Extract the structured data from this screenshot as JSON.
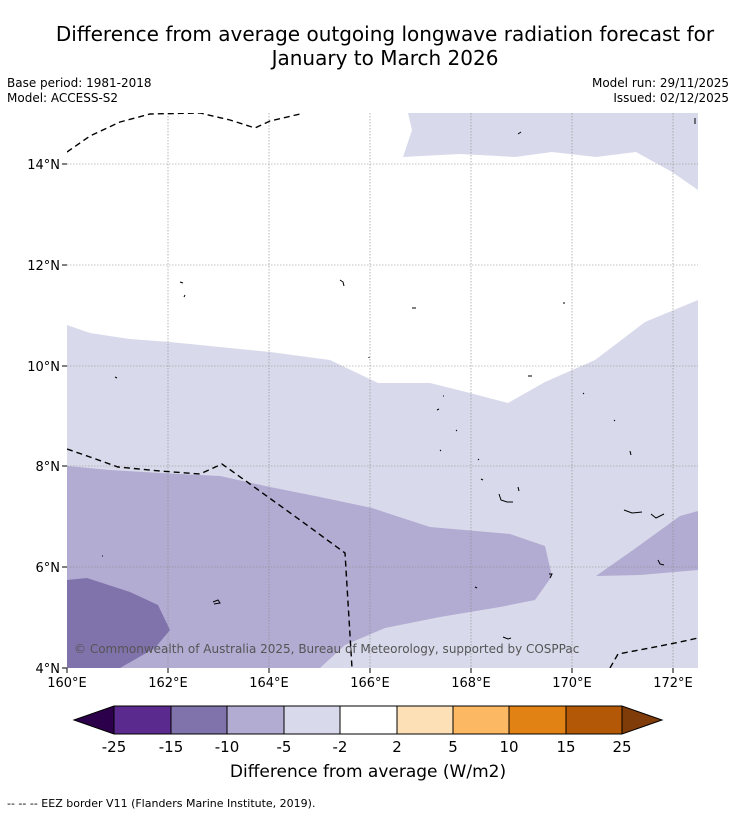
{
  "title_line1": "Difference from average outgoing longwave radiation forecast for",
  "title_line2": "January to March 2026",
  "base_period": "Base period: 1981-2018",
  "model": "Model: ACCESS-S2",
  "model_run": "Model run: 29/11/2025",
  "issued": "Issued: 02/12/2025",
  "lat_labels": [
    "14°N",
    "12°N",
    "10°N",
    "8°N",
    "6°N",
    "4°N"
  ],
  "lon_labels": [
    "160°E",
    "162°E",
    "164°E",
    "166°E",
    "168°E",
    "170°E",
    "172°E"
  ],
  "copyright": "© Commonwealth of Australia 2025, Bureau of Meteorology, supported by COSPPac",
  "colorbar": {
    "ticks": [
      "-25",
      "-15",
      "-10",
      "-5",
      "-2",
      "2",
      "5",
      "10",
      "15",
      "25"
    ],
    "colors": {
      "below_-25": "#2d004b",
      "-25_-15": "#5b2a8e",
      "-15_-10": "#8073ac",
      "-10_-5": "#b2abd2",
      "-5_-2": "#d8daeb",
      "-2_2": "#ffffff",
      "2_5": "#fee0b6",
      "5_10": "#fdb863",
      "10_15": "#e08214",
      "15_25": "#b35806",
      "above_25": "#7f3b08"
    },
    "title": "Difference from average (W/m2)"
  },
  "footnote": "--  --  -- EEZ border V11 (Flanders Marine Institute, 2019)."
}
